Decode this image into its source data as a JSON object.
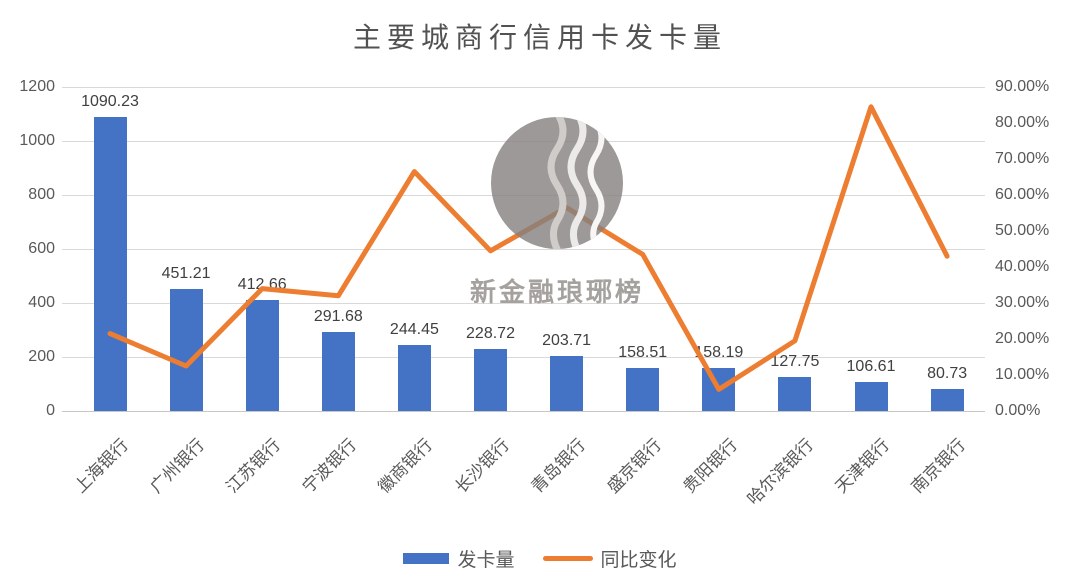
{
  "title": "主要城商行信用卡发卡量",
  "watermark": {
    "text": "新金融琅琊榜"
  },
  "colors": {
    "bar": "#4472C4",
    "line": "#ED7D31",
    "grid": "#D9D9D9",
    "axis_text": "#595959",
    "value_label": "#404040",
    "title_text": "#525252",
    "watermark_gray": "#83807E"
  },
  "chart_data": {
    "type": "bar",
    "subtype": "combo-bar-line-dual-axis",
    "title": "主要城商行信用卡发卡量",
    "categories": [
      "上海银行",
      "广州银行",
      "江苏银行",
      "宁波银行",
      "徽商银行",
      "长沙银行",
      "青岛银行",
      "盛京银行",
      "贵阳银行",
      "哈尔滨银行",
      "天津银行",
      "南京银行"
    ],
    "series": [
      {
        "name": "发卡量",
        "type": "bar",
        "axis": "left",
        "color": "#4472C4",
        "values": [
          1090.23,
          451.21,
          412.66,
          291.68,
          244.45,
          228.72,
          203.71,
          158.51,
          158.19,
          127.75,
          106.61,
          80.73
        ],
        "labels": [
          "1090.23",
          "451.21",
          "412.66",
          "291.68",
          "244.45",
          "228.72",
          "203.71",
          "158.51",
          "158.19",
          "127.75",
          "106.61",
          "80.73"
        ]
      },
      {
        "name": "同比变化",
        "type": "line",
        "axis": "right",
        "color": "#ED7D31",
        "values_percent_estimated": [
          21.5,
          12.5,
          34,
          32,
          66.5,
          44.5,
          56.5,
          43.5,
          6,
          19.5,
          84.5,
          43
        ]
      }
    ],
    "left_axis": {
      "min": 0,
      "max": 1200,
      "step": 200,
      "ticks": [
        "0",
        "200",
        "400",
        "600",
        "800",
        "1000",
        "1200"
      ]
    },
    "right_axis": {
      "min": 0,
      "max": 90,
      "step": 10,
      "ticks": [
        "0.00%",
        "10.00%",
        "20.00%",
        "30.00%",
        "40.00%",
        "50.00%",
        "60.00%",
        "70.00%",
        "80.00%",
        "90.00%"
      ]
    },
    "grid": true,
    "legend_position": "bottom"
  }
}
